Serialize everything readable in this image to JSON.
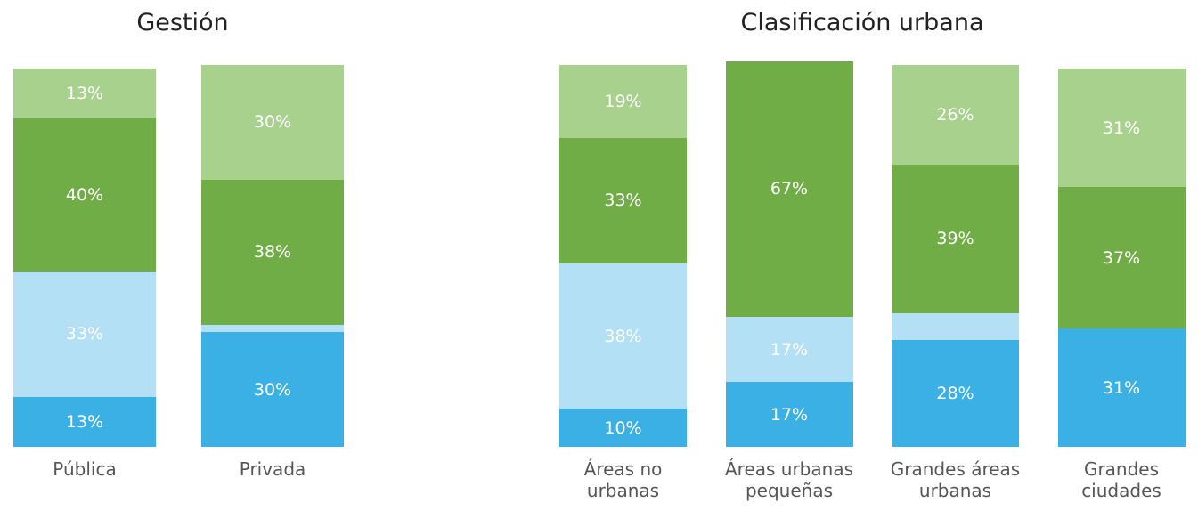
{
  "chart_data": [
    {
      "type": "bar",
      "stacked": true,
      "title": "Gestión",
      "categories": [
        "Pública",
        "Privada"
      ],
      "ylim": [
        0,
        100
      ],
      "series": [
        {
          "color": "#3bb0e4",
          "values": [
            13,
            30
          ],
          "value_labels": [
            "13%",
            "30%"
          ]
        },
        {
          "color": "#b3e0f4",
          "values": [
            33,
            2
          ],
          "value_labels": [
            "33%",
            null
          ]
        },
        {
          "color": "#70ad47",
          "values": [
            40,
            38
          ],
          "value_labels": [
            "40%",
            "38%"
          ]
        },
        {
          "color": "#a9d18e",
          "values": [
            13,
            30
          ],
          "value_labels": [
            "13%",
            "30%"
          ]
        }
      ]
    },
    {
      "type": "bar",
      "stacked": true,
      "title": "Clasificación urbana",
      "categories": [
        "Áreas no urbanas",
        "Áreas urbanas pequeñas",
        "Grandes áreas urbanas",
        "Grandes ciudades"
      ],
      "ylim": [
        0,
        100
      ],
      "series": [
        {
          "color": "#3bb0e4",
          "values": [
            10,
            17,
            28,
            31
          ],
          "value_labels": [
            "10%",
            "17%",
            "28%",
            "31%"
          ]
        },
        {
          "color": "#b3e0f4",
          "values": [
            38,
            17,
            7,
            null
          ],
          "value_labels": [
            "38%",
            "17%",
            null,
            null
          ]
        },
        {
          "color": "#70ad47",
          "values": [
            33,
            67,
            39,
            37
          ],
          "value_labels": [
            "33%",
            "67%",
            "39%",
            "37%"
          ]
        },
        {
          "color": "#a9d18e",
          "values": [
            19,
            null,
            26,
            31
          ],
          "value_labels": [
            "19%",
            null,
            "26%",
            "31%"
          ]
        }
      ]
    }
  ]
}
